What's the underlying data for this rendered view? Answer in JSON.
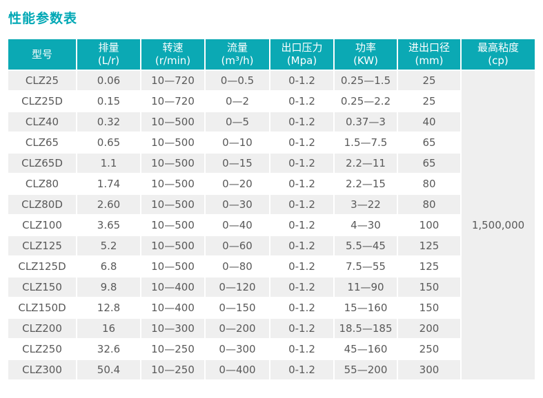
{
  "title": "性能参数表",
  "accent_color": "#0ba9b4",
  "row_alt_color": "#efefef",
  "table": {
    "columns": [
      {
        "line1": "型号",
        "line2": ""
      },
      {
        "line1": "排量",
        "line2": "(L/r)"
      },
      {
        "line1": "转速",
        "line2": "(r/min)"
      },
      {
        "line1": "流量",
        "line2": "(m³/h)"
      },
      {
        "line1": "出口压力",
        "line2": "(Mpa)"
      },
      {
        "line1": "功率",
        "line2": "(KW)"
      },
      {
        "line1": "进出口径",
        "line2": "(mm)"
      },
      {
        "line1": "最高粘度",
        "line2": "(cp)"
      }
    ],
    "rows": [
      [
        "CLZ25",
        "0.06",
        "10—720",
        "0—0.5",
        "0-1.2",
        "0.25—1.5",
        "25"
      ],
      [
        "CLZ25D",
        "0.15",
        "10—720",
        "0—2",
        "0-1.2",
        "0.25—2.2",
        "25"
      ],
      [
        "CLZ40",
        "0.32",
        "10—500",
        "0—5",
        "0-1.2",
        "0.37—3",
        "40"
      ],
      [
        "CLZ65",
        "0.65",
        "10—500",
        "0—10",
        "0-1.2",
        "1.5—7.5",
        "65"
      ],
      [
        "CLZ65D",
        "1.1",
        "10—500",
        "0—15",
        "0-1.2",
        "2.2—11",
        "65"
      ],
      [
        "CLZ80",
        "1.74",
        "10—500",
        "0—20",
        "0-1.2",
        "2.2—15",
        "80"
      ],
      [
        "CLZ80D",
        "2.60",
        "10—500",
        "0—30",
        "0-1.2",
        "3—22",
        "80"
      ],
      [
        "CLZ100",
        "3.65",
        "10—500",
        "0—40",
        "0-1.2",
        "4—30",
        "100"
      ],
      [
        "CLZ125",
        "5.2",
        "10—500",
        "0—60",
        "0-1.2",
        "5.5—45",
        "125"
      ],
      [
        "CLZ125D",
        "6.8",
        "10—500",
        "0—80",
        "0-1.2",
        "7.5—55",
        "125"
      ],
      [
        "CLZ150",
        "9.8",
        "10—400",
        "0—120",
        "0-1.2",
        "11—90",
        "150"
      ],
      [
        "CLZ150D",
        "12.8",
        "10—400",
        "0—150",
        "0-1.2",
        "15—160",
        "150"
      ],
      [
        "CLZ200",
        "16",
        "10—300",
        "0—200",
        "0-1.2",
        "18.5—185",
        "200"
      ],
      [
        "CLZ250",
        "32.6",
        "10—250",
        "0—300",
        "0-1.2",
        "45—160",
        "250"
      ],
      [
        "CLZ300",
        "50.4",
        "10—250",
        "0—400",
        "0-1.2",
        "55—200",
        "300"
      ]
    ],
    "max_viscosity": "1,500,000"
  }
}
